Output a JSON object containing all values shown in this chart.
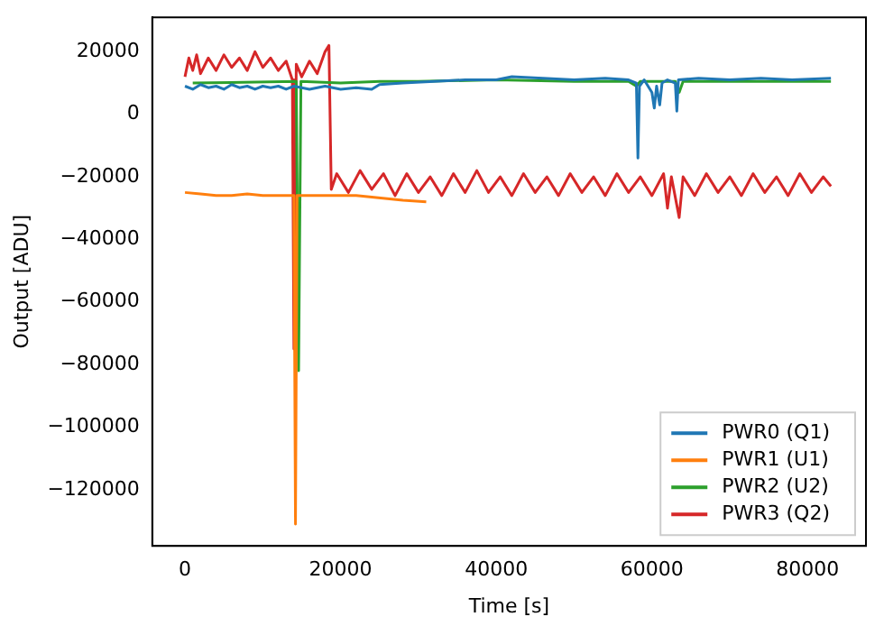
{
  "chart_data": {
    "type": "line",
    "xlabel": "Time [s]",
    "ylabel": "Output [ADU]",
    "xlim": [
      -4200,
      87500
    ],
    "ylim": [
      -138000,
      31000
    ],
    "xticks": [
      0,
      20000,
      40000,
      60000,
      80000
    ],
    "yticks": [
      -120000,
      -100000,
      -80000,
      -60000,
      -40000,
      -20000,
      0,
      20000
    ],
    "grid": false,
    "legend": "bottom right",
    "marker": "none",
    "line_style": "solid",
    "series": [
      {
        "name": "PWR0 (Q1)",
        "color": "#1f77b4",
        "x": [
          0,
          1000,
          2000,
          3000,
          4000,
          5000,
          6000,
          7000,
          8000,
          9000,
          10000,
          11000,
          12000,
          13000,
          14000,
          16000,
          18000,
          20000,
          22000,
          24000,
          25000,
          28000,
          32000,
          36000,
          40000,
          42000,
          46000,
          50000,
          54000,
          57000,
          58000,
          58200,
          58400,
          59000,
          60000,
          60300,
          60600,
          61000,
          61300,
          62000,
          63000,
          63200,
          63400,
          66000,
          70000,
          74000,
          78000,
          83000
        ],
        "values": [
          9000,
          8000,
          9500,
          8500,
          9000,
          8000,
          9500,
          8500,
          9000,
          8000,
          9000,
          8500,
          9000,
          8000,
          9000,
          8000,
          9000,
          8000,
          8500,
          8000,
          9500,
          10000,
          10500,
          11000,
          11000,
          12000,
          11500,
          11000,
          11500,
          11000,
          10000,
          -14000,
          9000,
          11000,
          7000,
          2000,
          9000,
          3000,
          10000,
          11000,
          10000,
          1000,
          11000,
          11500,
          11000,
          11500,
          11000,
          11500
        ]
      },
      {
        "name": "PWR1 (U1)",
        "color": "#ff7f0e",
        "x": [
          0,
          2000,
          4000,
          6000,
          8000,
          10000,
          12000,
          14000,
          14200,
          14400,
          16000,
          18000,
          20000,
          22000,
          24000,
          26000,
          28000,
          31000
        ],
        "values": [
          -25000,
          -25500,
          -26000,
          -26000,
          -25500,
          -26000,
          -26000,
          -26000,
          -131000,
          -26000,
          -26000,
          -26000,
          -26000,
          -26000,
          -26500,
          -27000,
          -27500,
          -28000
        ]
      },
      {
        "name": "PWR2 (U2)",
        "color": "#2ca02c",
        "x": [
          1000,
          14300,
          14600,
          14900,
          20000,
          25000,
          30000,
          40000,
          50000,
          57000,
          58000,
          58500,
          63000,
          63500,
          64000,
          70000,
          83000
        ],
        "values": [
          10000,
          10500,
          -82000,
          10500,
          10000,
          10500,
          10500,
          11000,
          10500,
          10500,
          9000,
          10500,
          10500,
          7000,
          10500,
          10500,
          10500
        ]
      },
      {
        "name": "PWR3 (Q2)",
        "color": "#d62728",
        "x": [
          0,
          500,
          1000,
          1500,
          2000,
          3000,
          4000,
          5000,
          6000,
          7000,
          8000,
          9000,
          10000,
          11000,
          12000,
          13000,
          13800,
          14000,
          14300,
          15000,
          16000,
          17000,
          18000,
          18500,
          18800,
          19500,
          21000,
          22500,
          24000,
          25500,
          27000,
          28500,
          30000,
          31500,
          33000,
          34500,
          36000,
          37500,
          39000,
          40500,
          42000,
          43500,
          45000,
          46500,
          48000,
          49500,
          51000,
          52500,
          54000,
          55500,
          57000,
          58500,
          60000,
          61500,
          62000,
          62500,
          63500,
          64000,
          65500,
          67000,
          68500,
          70000,
          71500,
          73000,
          74500,
          76000,
          77500,
          79000,
          80500,
          82000,
          83000
        ],
        "values": [
          12000,
          18000,
          14000,
          19000,
          13000,
          18000,
          14000,
          19000,
          15000,
          18000,
          14000,
          20000,
          15000,
          18000,
          14000,
          17000,
          11000,
          -75000,
          16000,
          12000,
          17000,
          13000,
          20000,
          22000,
          -24000,
          -19000,
          -25000,
          -18000,
          -24000,
          -19000,
          -26000,
          -19000,
          -25000,
          -20000,
          -26000,
          -19000,
          -25000,
          -18000,
          -25000,
          -20000,
          -26000,
          -19000,
          -25000,
          -20000,
          -26000,
          -19000,
          -25000,
          -20000,
          -26000,
          -19000,
          -25000,
          -20000,
          -26000,
          -19000,
          -30000,
          -20000,
          -33000,
          -20000,
          -26000,
          -19000,
          -25000,
          -20000,
          -26000,
          -19000,
          -25000,
          -20000,
          -26000,
          -19000,
          -25000,
          -20000,
          -23000
        ]
      }
    ]
  }
}
